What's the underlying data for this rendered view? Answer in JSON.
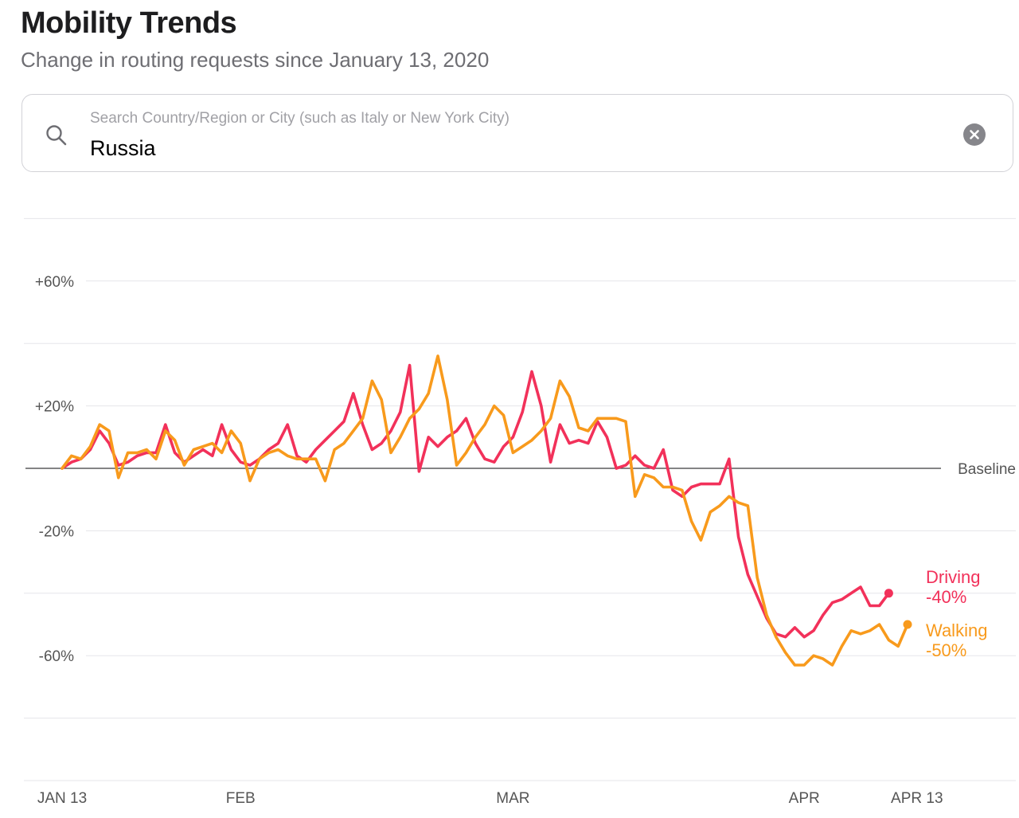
{
  "header": {
    "title": "Mobility Trends",
    "subtitle": "Change in routing requests since January 13, 2020"
  },
  "search": {
    "placeholder": "Search Country/Region or City (such as Italy or New York City)",
    "value": "Russia"
  },
  "icons": {
    "search": "search-icon",
    "clear": "clear-icon"
  },
  "colors": {
    "driving": "#f2315a",
    "walking": "#f89a1c",
    "grid": "#e5e5ea",
    "baseline": "#3a3a3c",
    "axis_text": "#555555"
  },
  "chart_data": {
    "type": "line",
    "title": "Mobility Trends",
    "subtitle": "Change in routing requests since January 13, 2020",
    "x_start": "2020-01-13",
    "x_end": "2020-04-13",
    "xlim": [
      0,
      95
    ],
    "ylim": [
      -100,
      80
    ],
    "y_ticks": [
      {
        "value": 60,
        "label": "+60%"
      },
      {
        "value": 20,
        "label": "+20%"
      },
      {
        "value": -20,
        "label": "-20%"
      },
      {
        "value": -60,
        "label": "-60%"
      }
    ],
    "x_ticks": [
      {
        "value": 0,
        "label": "JAN 13"
      },
      {
        "value": 19,
        "label": "FEB"
      },
      {
        "value": 48,
        "label": "MAR"
      },
      {
        "value": 79,
        "label": "APR"
      },
      {
        "value": 91,
        "label": "APR 13"
      }
    ],
    "baseline": {
      "value": 0,
      "label": "Baseline"
    },
    "grid": true,
    "series": [
      {
        "name": "Driving",
        "end_label": "-40%",
        "values": [
          0,
          2,
          3,
          6,
          12,
          8,
          1,
          2,
          4,
          5,
          5,
          14,
          5,
          2,
          4,
          6,
          4,
          14,
          6,
          2,
          1,
          3,
          6,
          8,
          14,
          4,
          2,
          6,
          9,
          12,
          15,
          24,
          14,
          6,
          8,
          12,
          18,
          33,
          -1,
          10,
          7,
          10,
          12,
          16,
          8,
          3,
          2,
          7,
          10,
          18,
          31,
          20,
          2,
          14,
          8,
          9,
          8,
          15,
          10,
          0,
          1,
          4,
          1,
          0,
          6,
          -7,
          -9,
          -6,
          -5,
          -5,
          -5,
          3,
          -22,
          -34,
          -41,
          -48,
          -53,
          -54,
          -51,
          -54,
          -52,
          -47,
          -43,
          -42,
          -40,
          -38,
          -44,
          -44,
          -40
        ]
      },
      {
        "name": "Walking",
        "end_label": "-50%",
        "values": [
          0,
          4,
          3,
          7,
          14,
          12,
          -3,
          5,
          5,
          6,
          3,
          12,
          9,
          1,
          6,
          7,
          8,
          5,
          12,
          8,
          -4,
          3,
          5,
          6,
          4,
          3,
          3,
          3,
          -4,
          6,
          8,
          12,
          16,
          28,
          22,
          5,
          10,
          16,
          19,
          24,
          36,
          22,
          1,
          5,
          10,
          14,
          20,
          17,
          5,
          7,
          9,
          12,
          16,
          28,
          23,
          13,
          12,
          16,
          16,
          16,
          15,
          -9,
          -2,
          -3,
          -6,
          -6,
          -7,
          -17,
          -23,
          -14,
          -12,
          -9,
          -11,
          -12,
          -35,
          -47,
          -54,
          -59,
          -63,
          -63,
          -60,
          -61,
          -63,
          -57,
          -52,
          -53,
          -52,
          -50,
          -55,
          -57,
          -50
        ]
      }
    ]
  }
}
